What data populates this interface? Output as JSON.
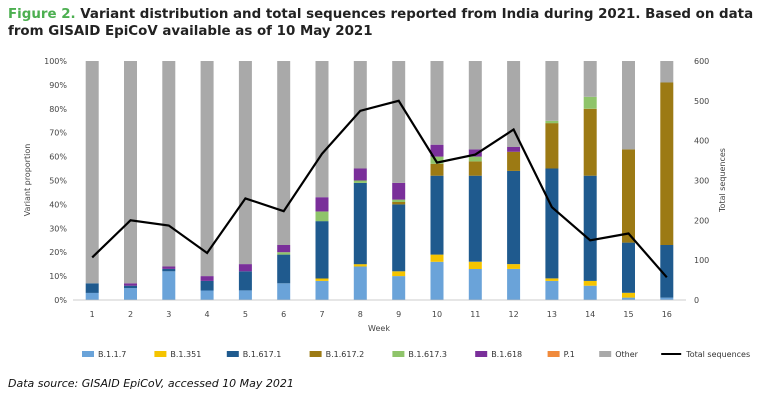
{
  "title": {
    "label": "Figure 2.",
    "text": "Variant distribution and total sequences reported from India during 2021. Based on data from GISAID EpiCoV available as of 10 May 2021"
  },
  "source": "Data source: GISAID EpiCoV, accessed 10 May 2021",
  "chart_data": {
    "type": "bar",
    "stacked": true,
    "xlabel": "Week",
    "ylabel": "Variant proportion",
    "y2label": "Total sequences",
    "categories": [
      "1",
      "2",
      "3",
      "4",
      "5",
      "6",
      "7",
      "8",
      "9",
      "10",
      "11",
      "12",
      "13",
      "14",
      "15",
      "16"
    ],
    "ylim": [
      0,
      100
    ],
    "y_ticks": [
      "0%",
      "10%",
      "20%",
      "30%",
      "40%",
      "50%",
      "60%",
      "70%",
      "80%",
      "90%",
      "100%"
    ],
    "y2lim": [
      0,
      600
    ],
    "y2_ticks": [
      "0",
      "100",
      "200",
      "300",
      "400",
      "500",
      "600"
    ],
    "series": [
      {
        "name": "B.1.1.7",
        "color": "#6aa3d9",
        "values": [
          3,
          5,
          12,
          4,
          4,
          7,
          8,
          14,
          10,
          16,
          13,
          13,
          8,
          6,
          1,
          1
        ]
      },
      {
        "name": "B.1.351",
        "color": "#f5c400",
        "values": [
          0,
          0,
          0,
          0,
          0,
          0,
          1,
          1,
          2,
          3,
          3,
          2,
          1,
          2,
          2,
          0
        ]
      },
      {
        "name": "B.1.617.1",
        "color": "#1f5a8e",
        "values": [
          4,
          1,
          1,
          4,
          8,
          12,
          24,
          34,
          28,
          33,
          36,
          39,
          46,
          44,
          21,
          22
        ]
      },
      {
        "name": "B.1.617.2",
        "color": "#9c7a14",
        "values": [
          0,
          0,
          0,
          0,
          0,
          0,
          0,
          0,
          1,
          5,
          6,
          8,
          19,
          28,
          39,
          68
        ]
      },
      {
        "name": "B.1.617.3",
        "color": "#8fc46a",
        "values": [
          0,
          0,
          0,
          0,
          0,
          1,
          4,
          1,
          1,
          3,
          2,
          0,
          1,
          5,
          0,
          0
        ]
      },
      {
        "name": "B.1.618",
        "color": "#7a2f9a",
        "values": [
          0,
          1,
          1,
          2,
          3,
          3,
          6,
          5,
          7,
          5,
          3,
          2,
          0,
          0,
          0,
          0
        ]
      },
      {
        "name": "P.1",
        "color": "#f08a3c",
        "values": [
          0,
          0,
          0,
          0,
          0,
          0,
          0,
          0,
          0,
          0,
          0,
          0,
          0,
          0,
          0,
          0
        ]
      },
      {
        "name": "Other",
        "color": "#a9a9a9",
        "values": [
          93,
          93,
          86,
          90,
          85,
          77,
          57,
          45,
          51,
          35,
          37,
          36,
          25,
          15,
          37,
          9
        ]
      }
    ],
    "line": {
      "name": "Total sequences",
      "color": "#000000",
      "values": [
        107,
        200,
        187,
        118,
        255,
        223,
        367,
        475,
        500,
        345,
        365,
        428,
        233,
        150,
        167,
        57
      ]
    },
    "legend_position": "bottom",
    "grid": false
  }
}
